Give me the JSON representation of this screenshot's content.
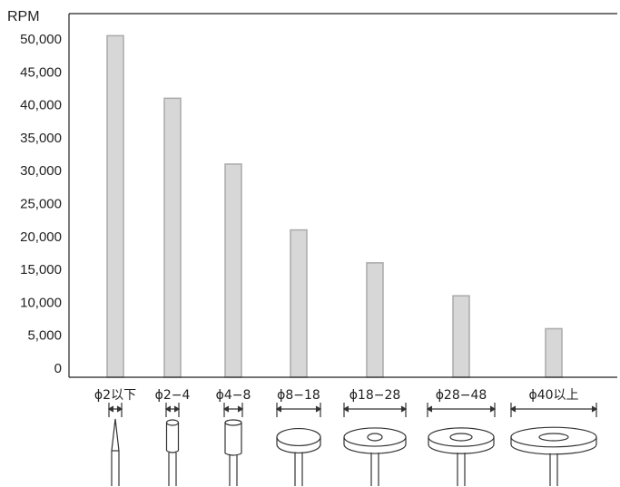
{
  "chart_data": {
    "type": "bar",
    "ylabel": "RPM",
    "ylim": [
      0,
      50000
    ],
    "yticks": [
      "50,000",
      "45,000",
      "40,000",
      "35,000",
      "30,000",
      "25,000",
      "20,000",
      "15,000",
      "10,000",
      "5,000",
      "0"
    ],
    "categories": [
      "ϕ2以下",
      "ϕ2−4",
      "ϕ4−8",
      "ϕ8−18",
      "ϕ18−28",
      "ϕ28−48",
      "ϕ40以上"
    ],
    "values": [
      50500,
      41000,
      31000,
      21000,
      16000,
      11000,
      6000
    ],
    "tool_icons": [
      "needle-bur-icon",
      "small-cylinder-bur-icon",
      "cylinder-bur-icon",
      "disc-icon",
      "wide-disc-icon",
      "wider-disc-icon",
      "large-disc-icon"
    ],
    "colors": {
      "bar_fill": "#d6d7d6",
      "bar_stroke": "#a9aaa9",
      "axis": "#222222"
    },
    "grid": false,
    "legend": "none"
  }
}
